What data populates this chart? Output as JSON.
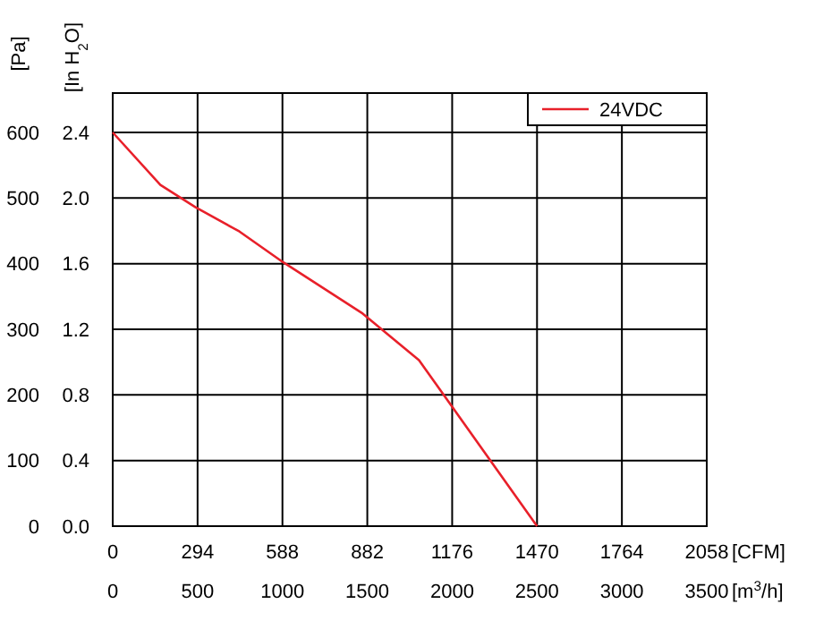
{
  "chart_data": {
    "type": "line",
    "ylabel": "[Pa]",
    "y2label": "[In H$_{2}$O]",
    "xlabel": "[CFM]",
    "x2label": "[m$^{3}$/h]",
    "xlim": [
      0,
      2058
    ],
    "xticks": [
      0,
      294,
      588,
      882,
      1176,
      1470,
      1764,
      2058
    ],
    "x2lim": [
      0,
      3500
    ],
    "x2ticks": [
      0,
      500,
      1000,
      1500,
      2000,
      2500,
      3000,
      3500
    ],
    "ylim": [
      0,
      660
    ],
    "yticks": [
      0,
      100,
      200,
      300,
      400,
      500,
      600
    ],
    "y2lim": [
      0,
      2.64
    ],
    "y2ticks": [
      {
        "value": 0,
        "label": "0.0"
      },
      {
        "value": 0.4,
        "label": "0.4"
      },
      {
        "value": 0.8,
        "label": "0.8"
      },
      {
        "value": 1.2,
        "label": "1.2"
      },
      {
        "value": 1.6,
        "label": "1.6"
      },
      {
        "value": 2,
        "label": "2.0"
      },
      {
        "value": 2.4,
        "label": "2.4"
      }
    ],
    "x": [
      0,
      165,
      287,
      439,
      591,
      866,
      1061,
      1470
    ],
    "series": [
      {
        "name": "24VDC",
        "color": "#e8202a",
        "values": [
          600,
          520,
          486,
          449,
          402,
          324,
          253,
          0
        ]
      }
    ],
    "grid": true,
    "legend": "top right",
    "marker": "none",
    "line_style": "solid"
  }
}
